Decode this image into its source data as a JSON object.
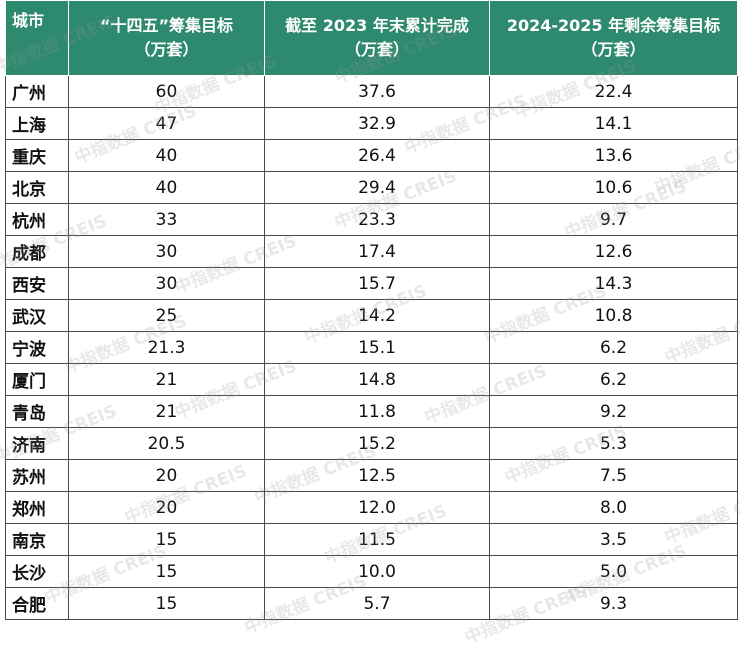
{
  "header": {
    "city": "城市",
    "col1_line1": "“十四五”筹集目标",
    "col1_line2": "（万套）",
    "col2_line1": "截至 2023 年末累计完成",
    "col2_line2": "（万套）",
    "col3_line1": "2024-2025 年剩余筹集目标",
    "col3_line2": "（万套）"
  },
  "rows": [
    {
      "city": "广州",
      "target": "60",
      "completed": "37.6",
      "remaining": "22.4"
    },
    {
      "city": "上海",
      "target": "47",
      "completed": "32.9",
      "remaining": "14.1"
    },
    {
      "city": "重庆",
      "target": "40",
      "completed": "26.4",
      "remaining": "13.6"
    },
    {
      "city": "北京",
      "target": "40",
      "completed": "29.4",
      "remaining": "10.6"
    },
    {
      "city": "杭州",
      "target": "33",
      "completed": "23.3",
      "remaining": "9.7"
    },
    {
      "city": "成都",
      "target": "30",
      "completed": "17.4",
      "remaining": "12.6"
    },
    {
      "city": "西安",
      "target": "30",
      "completed": "15.7",
      "remaining": "14.3"
    },
    {
      "city": "武汉",
      "target": "25",
      "completed": "14.2",
      "remaining": "10.8"
    },
    {
      "city": "宁波",
      "target": "21.3",
      "completed": "15.1",
      "remaining": "6.2"
    },
    {
      "city": "厦门",
      "target": "21",
      "completed": "14.8",
      "remaining": "6.2"
    },
    {
      "city": "青岛",
      "target": "21",
      "completed": "11.8",
      "remaining": "9.2"
    },
    {
      "city": "济南",
      "target": "20.5",
      "completed": "15.2",
      "remaining": "5.3"
    },
    {
      "city": "苏州",
      "target": "20",
      "completed": "12.5",
      "remaining": "7.5"
    },
    {
      "city": "郑州",
      "target": "20",
      "completed": "12.0",
      "remaining": "8.0"
    },
    {
      "city": "南京",
      "target": "15",
      "completed": "11.5",
      "remaining": "3.5"
    },
    {
      "city": "长沙",
      "target": "15",
      "completed": "10.0",
      "remaining": "5.0"
    },
    {
      "city": "合肥",
      "target": "15",
      "completed": "5.7",
      "remaining": "9.3"
    }
  ],
  "watermark": "中指数据 CREIS",
  "colors": {
    "header_bg": "#2e8a6f",
    "header_text": "#ffffff",
    "border": "#4a4a4a"
  }
}
